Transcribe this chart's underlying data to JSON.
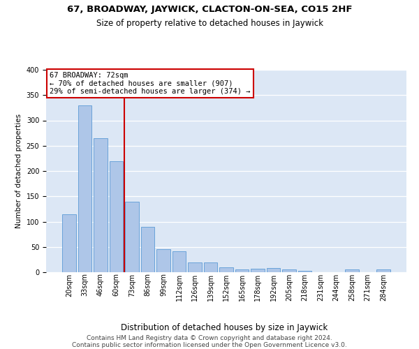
{
  "title1": "67, BROADWAY, JAYWICK, CLACTON-ON-SEA, CO15 2HF",
  "title2": "Size of property relative to detached houses in Jaywick",
  "xlabel": "Distribution of detached houses by size in Jaywick",
  "ylabel": "Number of detached properties",
  "categories": [
    "20sqm",
    "33sqm",
    "46sqm",
    "60sqm",
    "73sqm",
    "86sqm",
    "99sqm",
    "112sqm",
    "126sqm",
    "139sqm",
    "152sqm",
    "165sqm",
    "178sqm",
    "192sqm",
    "205sqm",
    "218sqm",
    "231sqm",
    "244sqm",
    "258sqm",
    "271sqm",
    "284sqm"
  ],
  "values": [
    115,
    330,
    265,
    220,
    140,
    90,
    45,
    42,
    20,
    20,
    10,
    5,
    7,
    8,
    5,
    3,
    0,
    0,
    5,
    0,
    5
  ],
  "bar_color": "#aec6e8",
  "bar_edge_color": "#5b9bd5",
  "vline_index": 4,
  "vline_color": "#cc0000",
  "annotation_text": "67 BROADWAY: 72sqm\n← 70% of detached houses are smaller (907)\n29% of semi-detached houses are larger (374) →",
  "annotation_box_facecolor": "white",
  "annotation_box_edgecolor": "#cc0000",
  "ylim_max": 400,
  "yticks": [
    0,
    50,
    100,
    150,
    200,
    250,
    300,
    350,
    400
  ],
  "footnote": "Contains HM Land Registry data © Crown copyright and database right 2024.\nContains public sector information licensed under the Open Government Licence v3.0.",
  "bg_color": "#dce7f5",
  "grid_color": "white",
  "title1_fontsize": 9.5,
  "title2_fontsize": 8.5,
  "xlabel_fontsize": 8.5,
  "ylabel_fontsize": 7.5,
  "tick_fontsize": 7,
  "annotation_fontsize": 7.5,
  "footnote_fontsize": 6.5
}
